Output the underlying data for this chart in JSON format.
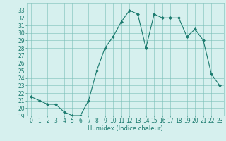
{
  "x": [
    0,
    1,
    2,
    3,
    4,
    5,
    6,
    7,
    8,
    9,
    10,
    11,
    12,
    13,
    14,
    15,
    16,
    17,
    18,
    19,
    20,
    21,
    22,
    23
  ],
  "y": [
    21.5,
    21.0,
    20.5,
    20.5,
    19.5,
    19.0,
    19.0,
    21.0,
    25.0,
    28.0,
    29.5,
    31.5,
    33.0,
    32.5,
    28.0,
    32.5,
    32.0,
    32.0,
    32.0,
    29.5,
    30.5,
    29.0,
    24.5,
    23.0
  ],
  "line_color": "#1a7a6e",
  "marker_color": "#1a7a6e",
  "bg_color": "#d6f0ee",
  "grid_color": "#7abfb8",
  "xlabel": "Humidex (Indice chaleur)",
  "ylim": [
    19,
    34
  ],
  "xlim": [
    -0.5,
    23.5
  ],
  "yticks": [
    19,
    20,
    21,
    22,
    23,
    24,
    25,
    26,
    27,
    28,
    29,
    30,
    31,
    32,
    33
  ],
  "xticks": [
    0,
    1,
    2,
    3,
    4,
    5,
    6,
    7,
    8,
    9,
    10,
    11,
    12,
    13,
    14,
    15,
    16,
    17,
    18,
    19,
    20,
    21,
    22,
    23
  ],
  "title_color": "#1a7a6e",
  "font_size_label": 6,
  "font_size_tick": 5.5
}
